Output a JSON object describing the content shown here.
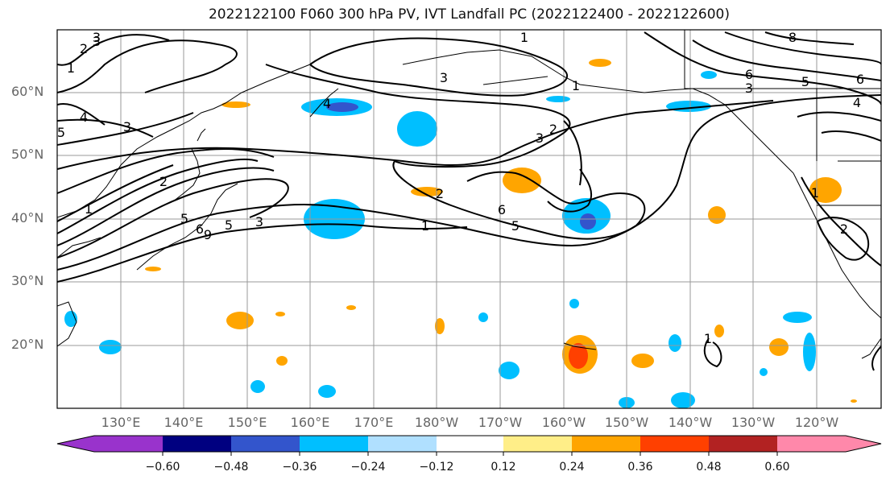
{
  "title": "2022122100 F060 300 hPa PV, IVT Landfall PC (2022122400 - 2022122600)",
  "lat_labels": [
    "60°N",
    "50°N",
    "40°N",
    "30°N",
    "20°N"
  ],
  "lon_labels": [
    "130°E",
    "140°E",
    "150°E",
    "160°E",
    "170°E",
    "180°W",
    "170°W",
    "160°W",
    "150°W",
    "140°W",
    "130°W",
    "120°W"
  ],
  "colorbar": {
    "colors": [
      "#9933cc",
      "#000080",
      "#3355cc",
      "#00bfff",
      "#b0e0ff",
      "#ffffff",
      "#ffee88",
      "#ffa500",
      "#ff4000",
      "#b22222",
      "#ff88aa"
    ],
    "tick_labels": [
      "−0.60",
      "−0.48",
      "−0.36",
      "−0.24",
      "−0.12",
      "0.12",
      "0.24",
      "0.36",
      "0.48",
      "0.60"
    ]
  },
  "contour_labels": [
    "3",
    "2",
    "1",
    "4",
    "3",
    "3",
    "1",
    "2",
    "3",
    "8",
    "6",
    "5",
    "3",
    "4",
    "6",
    "2",
    "1",
    "5",
    "6",
    "9",
    "5",
    "3",
    "2",
    "1",
    "1",
    "6",
    "5",
    "4",
    "2",
    "1",
    "1",
    "5",
    "3"
  ]
}
